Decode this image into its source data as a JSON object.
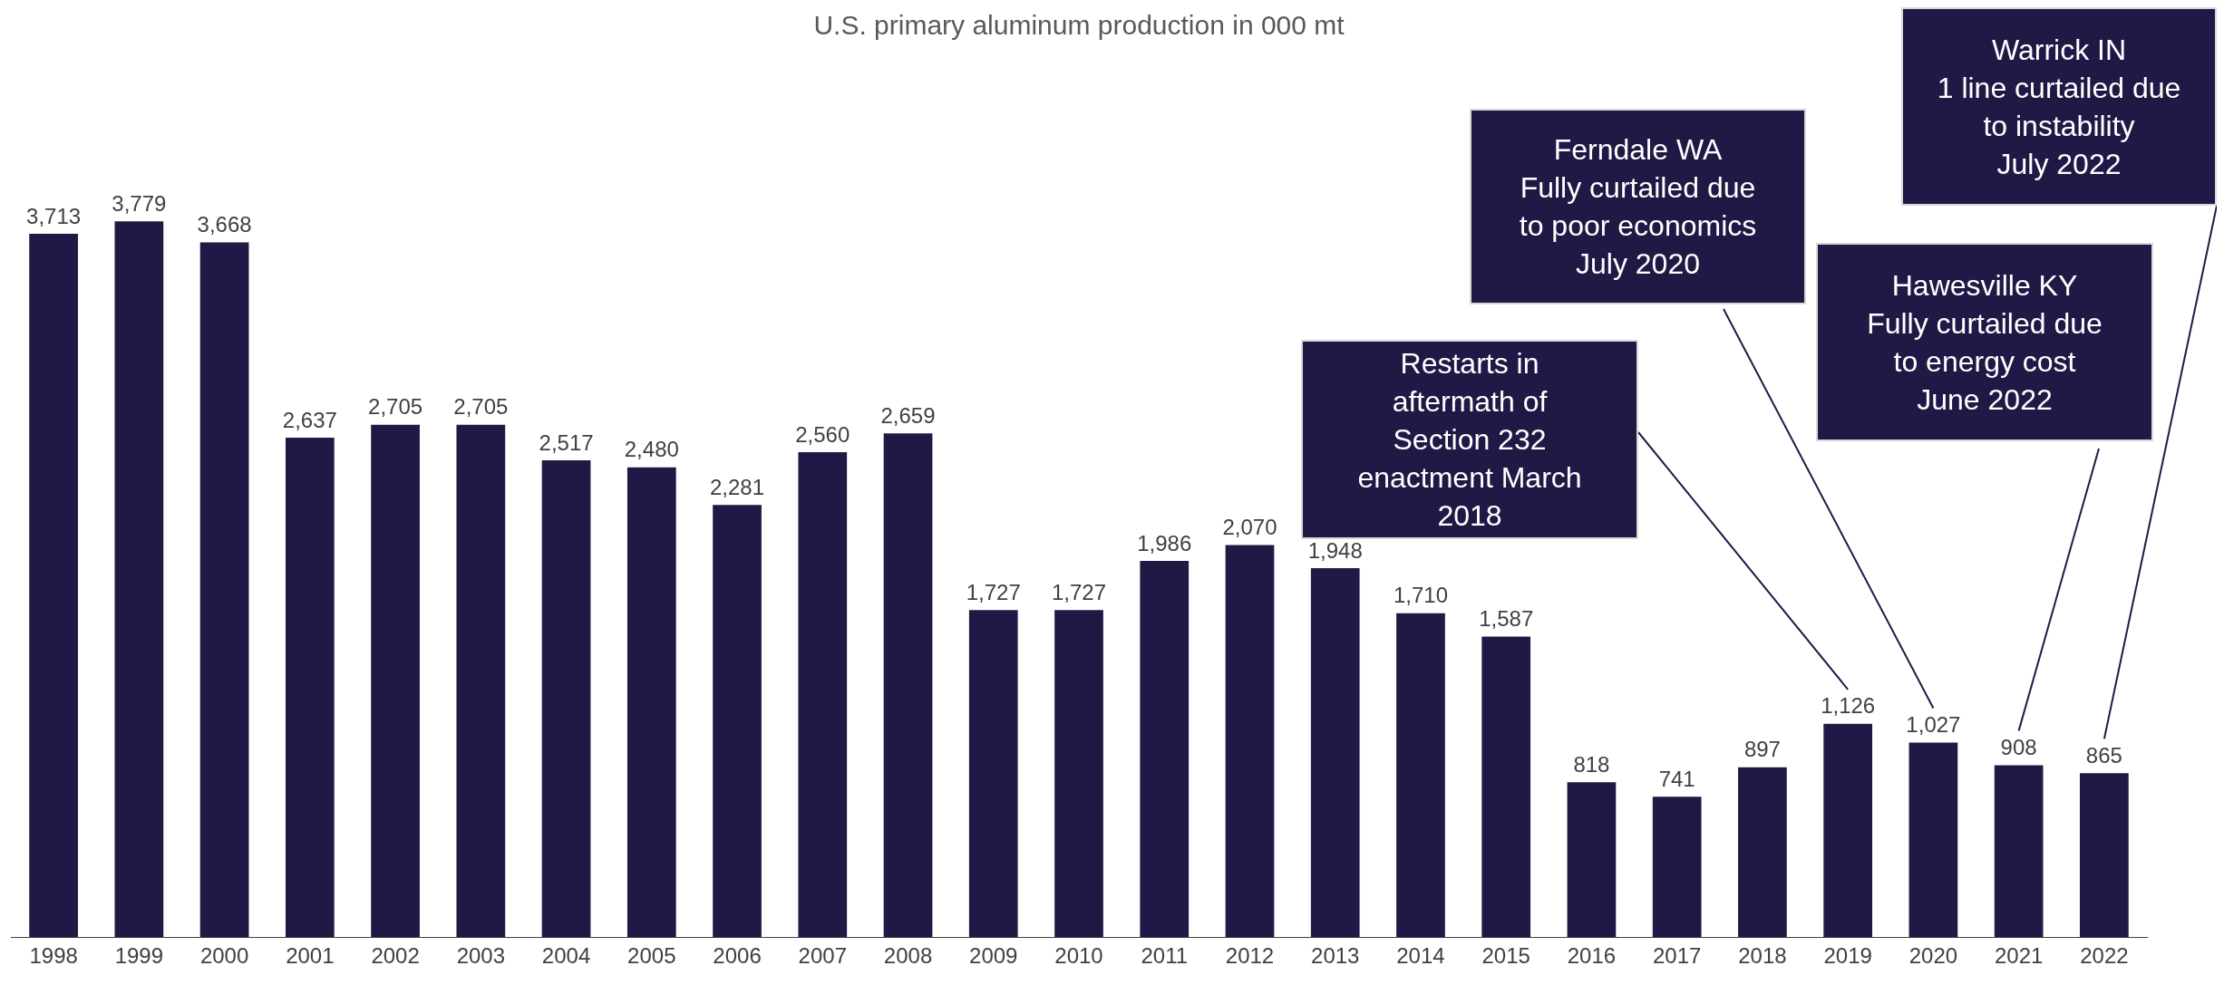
{
  "chart_data": {
    "type": "bar",
    "title": "U.S. primary aluminum production in 000 mt",
    "categories": [
      "1998",
      "1999",
      "2000",
      "2001",
      "2002",
      "2003",
      "2004",
      "2005",
      "2006",
      "2007",
      "2008",
      "2009",
      "2010",
      "2011",
      "2012",
      "2013",
      "2014",
      "2015",
      "2016",
      "2017",
      "2018",
      "2019",
      "2020",
      "2021",
      "2022"
    ],
    "values": [
      3713,
      3779,
      3668,
      2637,
      2705,
      2705,
      2517,
      2480,
      2281,
      2560,
      2659,
      1727,
      1727,
      1986,
      2070,
      1948,
      1710,
      1587,
      818,
      741,
      897,
      1126,
      1027,
      908,
      865
    ],
    "value_labels": [
      "3,713",
      "3,779",
      "3,668",
      "2,637",
      "2,705",
      "2,705",
      "2,517",
      "2,480",
      "2,281",
      "2,560",
      "2,659",
      "1,727",
      "1,727",
      "1,986",
      "2,070",
      "1,948",
      "1,710",
      "1,587",
      "818",
      "741",
      "897",
      "1,126",
      "1,027",
      "908",
      "865"
    ],
    "color": "#1f1a45",
    "grid": false,
    "legend": false,
    "annotations": [
      "Restarts in\naftermath of\nSection 232\nenactment March\n2018",
      "Ferndale WA\nFully curtailed due\nto poor economics\nJuly 2020",
      "Hawesville KY\nFully curtailed due\nto energy cost\nJune 2022",
      "Warrick IN\n1 line curtailed due\nto instability\nJuly 2022"
    ]
  }
}
